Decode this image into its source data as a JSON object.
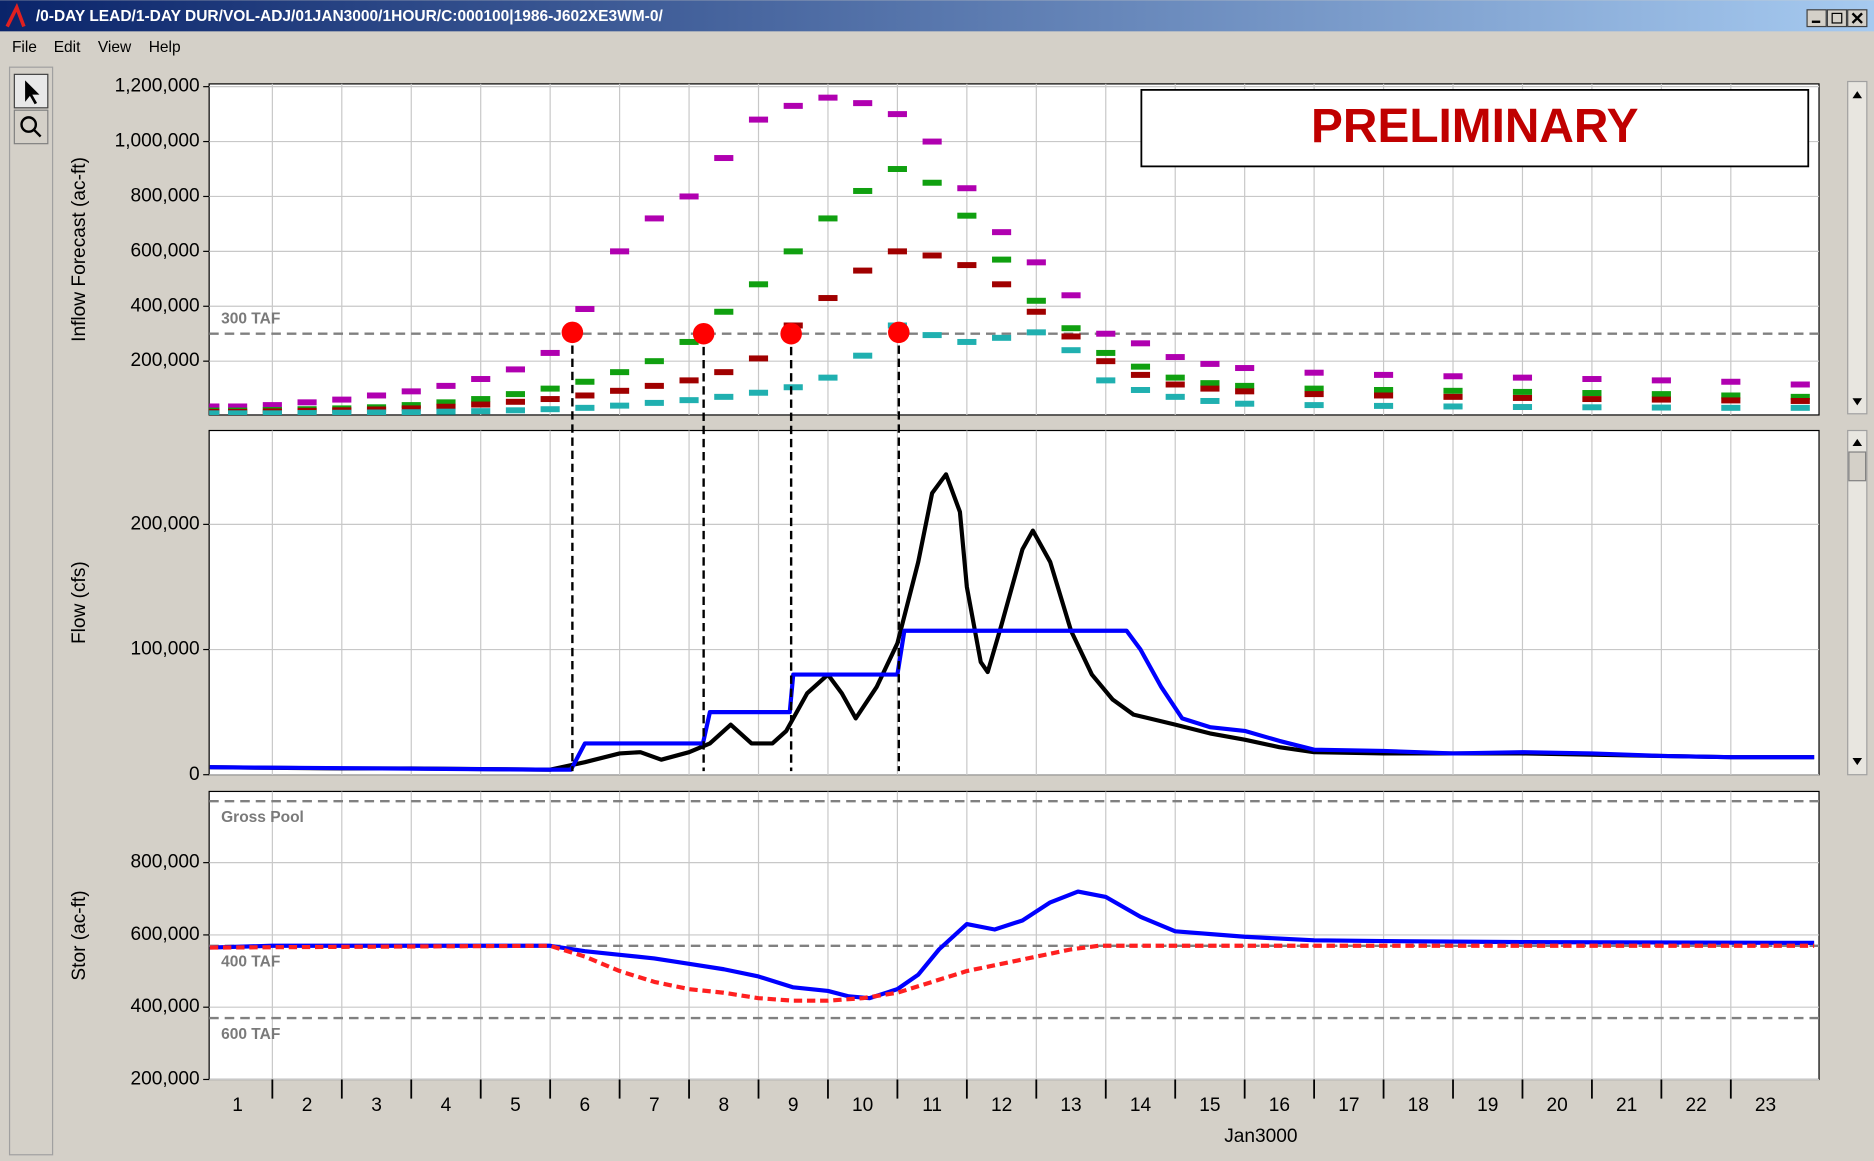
{
  "window": {
    "title": "/0-DAY LEAD/1-DAY DUR/VOL-ADJ/01JAN3000/1HOUR/C:000100|1986-J602XE3WM-0/",
    "menu": [
      "File",
      "Edit",
      "View",
      "Help"
    ]
  },
  "chart_data": [
    {
      "type": "line",
      "ylabel": "Inflow Forecast (ac-ft)",
      "annotation": "PRELIMINARY",
      "xlim": [
        1.09,
        24.27
      ],
      "ylim": [
        4000,
        1210000
      ],
      "yticks": [
        {
          "value": 200000,
          "label": "200,000"
        },
        {
          "value": 400000,
          "label": "400,000"
        },
        {
          "value": 600000,
          "label": "600,000"
        },
        {
          "value": 800000,
          "label": "800,000"
        },
        {
          "value": 1000000,
          "label": "1,000,000"
        },
        {
          "value": 1200000,
          "label": "1,200,000"
        }
      ],
      "grid": true,
      "reference_lines": [
        {
          "value": 300000,
          "label": "300 TAF"
        }
      ],
      "x": [
        1.1,
        1.5,
        2,
        2.5,
        3,
        3.5,
        4,
        4.5,
        5,
        5.5,
        6,
        6.5,
        7,
        7.5,
        8,
        8.5,
        9,
        9.5,
        10,
        10.5,
        11,
        11.5,
        12,
        12.5,
        13,
        13.5,
        14,
        14.5,
        15,
        15.5,
        16,
        17,
        18,
        19,
        20,
        21,
        22,
        23,
        24
      ],
      "series": [
        {
          "color": "#b000b0",
          "style": "dashes",
          "values": [
            35000,
            35000,
            40000,
            50000,
            60000,
            75000,
            90000,
            110000,
            135000,
            170000,
            230000,
            390000,
            600000,
            720000,
            800000,
            940000,
            1080000,
            1130000,
            1160000,
            1140000,
            1100000,
            1000000,
            830000,
            670000,
            560000,
            440000,
            300000,
            265000,
            215000,
            190000,
            175000,
            158000,
            150000,
            145000,
            140000,
            135000,
            130000,
            125000,
            115000
          ]
        },
        {
          "color": "#10a010",
          "style": "dashes",
          "values": [
            20000,
            20000,
            22000,
            25000,
            28000,
            32000,
            40000,
            50000,
            62000,
            80000,
            100000,
            125000,
            160000,
            200000,
            270000,
            380000,
            480000,
            600000,
            720000,
            820000,
            900000,
            850000,
            730000,
            570000,
            420000,
            320000,
            230000,
            180000,
            140000,
            120000,
            110000,
            100000,
            95000,
            92000,
            88000,
            84000,
            80000,
            75000,
            70000
          ]
        },
        {
          "color": "#a00000",
          "style": "dashes",
          "values": [
            15000,
            15000,
            17000,
            19000,
            21000,
            24000,
            28000,
            34000,
            42000,
            52000,
            62000,
            75000,
            92000,
            110000,
            130000,
            160000,
            210000,
            330000,
            430000,
            530000,
            600000,
            585000,
            550000,
            480000,
            380000,
            290000,
            200000,
            150000,
            115000,
            100000,
            90000,
            80000,
            75000,
            70000,
            66000,
            62000,
            60000,
            57000,
            55000
          ]
        },
        {
          "color": "#20b0b0",
          "style": "dashes",
          "values": [
            10000,
            10000,
            10000,
            11000,
            12000,
            13000,
            14000,
            16000,
            18000,
            21000,
            25000,
            30000,
            38000,
            48000,
            58000,
            70000,
            85000,
            105000,
            140000,
            220000,
            330000,
            295000,
            270000,
            285000,
            305000,
            240000,
            130000,
            95000,
            70000,
            55000,
            45000,
            40000,
            37000,
            35000,
            33000,
            32000,
            31000,
            30000,
            30000
          ]
        },
        {
          "color": "#ff0000",
          "style": "dots",
          "x": [
            6.32,
            8.21,
            9.47,
            11.02
          ],
          "values": [
            305000,
            300000,
            300000,
            305000
          ]
        }
      ]
    },
    {
      "type": "line",
      "ylabel": "Flow (cfs)",
      "xlim": [
        1.09,
        24.27
      ],
      "ylim": [
        0,
        275000
      ],
      "yticks": [
        0,
        {
          "value": 100000,
          "label": "100,000"
        },
        {
          "value": 200000,
          "label": "200,000"
        }
      ],
      "grid": true,
      "series": [
        {
          "color": "#000000",
          "style": "line",
          "x": [
            1.1,
            2,
            3,
            4,
            5,
            6,
            6.5,
            7,
            7.3,
            7.6,
            8,
            8.3,
            8.6,
            8.9,
            9.2,
            9.4,
            9.7,
            10,
            10.2,
            10.4,
            10.7,
            11,
            11.3,
            11.5,
            11.7,
            11.9,
            12,
            12.2,
            12.3,
            12.5,
            12.8,
            12.95,
            13.2,
            13.5,
            13.8,
            14.1,
            14.4,
            15,
            15.5,
            16,
            16.5,
            17,
            18,
            19,
            20,
            21,
            22,
            23,
            24.2
          ],
          "values": [
            6000,
            5500,
            5000,
            5000,
            4500,
            4000,
            10000,
            17000,
            18000,
            12000,
            18000,
            25000,
            40000,
            25000,
            25000,
            35000,
            65000,
            80000,
            65000,
            45000,
            70000,
            105000,
            170000,
            225000,
            240000,
            210000,
            150000,
            90000,
            82000,
            120000,
            180000,
            195000,
            170000,
            115000,
            80000,
            60000,
            48000,
            40000,
            33000,
            28000,
            22000,
            18000,
            17000,
            17000,
            17000,
            16000,
            15000,
            14000,
            14000
          ]
        },
        {
          "color": "#0000ff",
          "style": "line",
          "x": [
            1.1,
            6,
            6.3,
            6.5,
            8.2,
            8.3,
            9.45,
            9.5,
            11.0,
            11.1,
            14.3,
            14.5,
            14.8,
            15.1,
            15.5,
            16,
            16.5,
            17,
            18,
            19,
            20,
            21,
            22,
            23,
            24.2
          ],
          "values": [
            6000,
            4000,
            4000,
            25000,
            25000,
            50000,
            50000,
            80000,
            80000,
            115000,
            115000,
            100000,
            70000,
            45000,
            38000,
            35000,
            27000,
            20000,
            19000,
            17000,
            18000,
            17000,
            15000,
            14000,
            14000
          ]
        }
      ]
    },
    {
      "type": "line",
      "ylabel": "Stor (ac-ft)",
      "xlabel": "Jan3000",
      "xlim": [
        1.09,
        24.27
      ],
      "ylim": [
        200000,
        997000
      ],
      "xticks": [
        1,
        2,
        3,
        4,
        5,
        6,
        7,
        8,
        9,
        10,
        11,
        12,
        13,
        14,
        15,
        16,
        17,
        18,
        19,
        20,
        21,
        22,
        23
      ],
      "yticks": [
        {
          "value": 200000,
          "label": "200,000"
        },
        {
          "value": 400000,
          "label": "400,000"
        },
        {
          "value": 600000,
          "label": "600,000"
        },
        {
          "value": 800000,
          "label": "800,000"
        }
      ],
      "grid": true,
      "reference_lines": [
        {
          "value": 970000,
          "label": "Gross Pool"
        },
        {
          "value": 570000,
          "label": "400 TAF"
        },
        {
          "value": 370000,
          "label": "600 TAF"
        }
      ],
      "series": [
        {
          "color": "#0000ff",
          "style": "line",
          "x": [
            1.1,
            2,
            6,
            6.5,
            7,
            7.5,
            8,
            8.5,
            9,
            9.5,
            10,
            10.3,
            10.6,
            11,
            11.3,
            11.6,
            12,
            12.4,
            12.8,
            13.2,
            13.6,
            14,
            14.5,
            15,
            16,
            17,
            18,
            20,
            24.2
          ],
          "values": [
            565000,
            570000,
            570000,
            555000,
            545000,
            535000,
            520000,
            505000,
            485000,
            455000,
            445000,
            430000,
            425000,
            450000,
            490000,
            560000,
            630000,
            615000,
            640000,
            690000,
            720000,
            705000,
            650000,
            610000,
            595000,
            585000,
            583000,
            580000,
            578000
          ]
        },
        {
          "color": "#ff2020",
          "style": "dashed",
          "x": [
            1.1,
            6,
            6.5,
            7,
            7.5,
            8,
            8.5,
            9,
            9.5,
            10,
            10.5,
            11,
            11.5,
            12,
            12.5,
            13,
            13.5,
            13.9,
            24.2
          ],
          "values": [
            565000,
            570000,
            540000,
            500000,
            470000,
            450000,
            440000,
            425000,
            418000,
            418000,
            425000,
            440000,
            470000,
            500000,
            520000,
            540000,
            560000,
            570000,
            570000
          ]
        }
      ]
    }
  ]
}
